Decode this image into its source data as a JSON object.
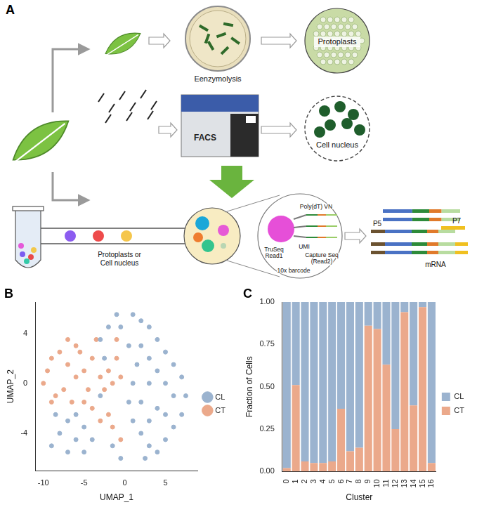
{
  "diagram": {
    "panel": "A",
    "enzymolysis_label": "Eenzymolysis",
    "protoplasts_label": "Protoplasts",
    "facs_label": "FACS",
    "nucleus_label": "Cell nucleus",
    "droplet_input_label": [
      "Protoplasts or",
      "Cell nucleus"
    ],
    "bead_labels": {
      "truseq": "TruSeq Read1",
      "barcode": "10x barcode",
      "umi": "UMI",
      "poly_dt": "Poly(dT) VN",
      "capture": "Capture Seq (Read2)"
    },
    "library_labels": {
      "p5": "P5",
      "p7": "P7",
      "mrna": "mRNA"
    }
  },
  "chart_data": [
    {
      "panel": "B",
      "type": "scatter",
      "x_label": "UMAP_1",
      "y_label": "UMAP_2",
      "xlim": [
        -11,
        9
      ],
      "ylim": [
        -7,
        6.5
      ],
      "xticks": [
        -10,
        -5,
        0,
        5
      ],
      "yticks": [
        -4,
        0,
        4
      ],
      "grid": false,
      "legend": "right",
      "series": [
        {
          "name": "CL",
          "color": "#9bb3cf",
          "x": [
            1,
            2,
            3,
            4,
            5,
            6,
            7,
            7.5,
            7,
            6,
            5,
            4,
            3,
            2,
            1,
            0.5,
            1,
            1.5,
            2,
            3,
            4,
            5,
            6,
            4,
            3,
            2,
            3,
            5,
            0.5,
            -0.5,
            -1,
            -2,
            -3,
            -2.5,
            -7,
            -8,
            -9,
            -7,
            -6,
            -5,
            -4,
            -5,
            -6,
            -8.5,
            -3,
            -1.5,
            -0.5,
            2.5
          ],
          "y": [
            5.5,
            5,
            4.5,
            3.5,
            2.5,
            1.5,
            0.5,
            -1,
            -2.5,
            -3.5,
            -4.5,
            -5.5,
            -5,
            -4,
            -3,
            -1.5,
            0,
            1.5,
            3,
            2,
            1,
            0,
            -1,
            -2,
            -3,
            -1.5,
            0,
            -2.5,
            3,
            4.5,
            5.5,
            4.5,
            3.5,
            2,
            -3,
            -4,
            -5,
            -5.5,
            -4.5,
            -3.5,
            -4.5,
            -5.5,
            -2.5,
            -2.5,
            -1,
            -5,
            -6,
            -6
          ]
        },
        {
          "name": "CT",
          "color": "#eba98b",
          "x": [
            -10,
            -9.5,
            -9,
            -8,
            -7,
            -6,
            -7.5,
            -8.5,
            -9,
            -6.5,
            -5,
            -4,
            -5.5,
            -6,
            -4.5,
            -3,
            -2,
            -1,
            -1.5,
            -2.5,
            -4,
            -3,
            -1.5,
            -0.5,
            -2,
            -3.5,
            -1,
            -0.5,
            -7,
            -5
          ],
          "y": [
            0,
            1,
            2,
            2.5,
            1.5,
            0.5,
            -0.5,
            -1,
            -1.5,
            -1.5,
            1,
            2,
            2.5,
            3,
            -0.5,
            0.5,
            1,
            2,
            0,
            -0.5,
            -2,
            -3,
            -3.5,
            -4.5,
            -2.5,
            3.5,
            3.5,
            0.5,
            3.5,
            -1.5
          ]
        }
      ]
    },
    {
      "panel": "C",
      "type": "bar",
      "stacked": true,
      "x_label": "Cluster",
      "y_label": "Fraction of Cells",
      "categories": [
        "0",
        "1",
        "2",
        "3",
        "4",
        "5",
        "6",
        "7",
        "8",
        "9",
        "10",
        "11",
        "12",
        "13",
        "14",
        "15",
        "16"
      ],
      "ylim": [
        0,
        1
      ],
      "yticks": [
        {
          "value": 0,
          "label": "0.00"
        },
        {
          "value": 0.25,
          "label": "0.25"
        },
        {
          "value": 0.5,
          "label": "0.50"
        },
        {
          "value": 0.75,
          "label": "0.75"
        },
        {
          "value": 1,
          "label": "1.00"
        }
      ],
      "grid": false,
      "legend": "right",
      "series": [
        {
          "name": "CL",
          "color": "#9bb3cf",
          "values": [
            0.98,
            0.49,
            0.94,
            0.95,
            0.95,
            0.94,
            0.63,
            0.88,
            0.86,
            0.14,
            0.16,
            0.37,
            0.75,
            0.06,
            0.61,
            0.03,
            0.95
          ]
        },
        {
          "name": "CT",
          "color": "#eba98b",
          "values": [
            0.02,
            0.51,
            0.06,
            0.05,
            0.05,
            0.06,
            0.37,
            0.12,
            0.14,
            0.86,
            0.84,
            0.63,
            0.25,
            0.94,
            0.39,
            0.97,
            0.05
          ]
        }
      ]
    }
  ]
}
